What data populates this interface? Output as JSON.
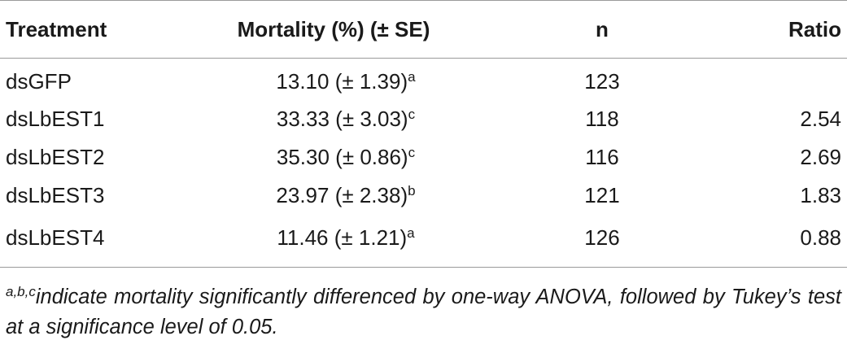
{
  "table": {
    "headers": {
      "treatment": "Treatment",
      "mortality": "Mortality (%) (± SE)",
      "n": "n",
      "ratio": "Ratio"
    },
    "rows": [
      {
        "treatment": "dsGFP",
        "mortality": "13.10 (± 1.39)",
        "sig": "a",
        "n": "123",
        "ratio": ""
      },
      {
        "treatment": "dsLbEST1",
        "mortality": "33.33 (± 3.03)",
        "sig": "c",
        "n": "118",
        "ratio": "2.54"
      },
      {
        "treatment": "dsLbEST2",
        "mortality": "35.30 (± 0.86)",
        "sig": "c",
        "n": "116",
        "ratio": "2.69"
      },
      {
        "treatment": "dsLbEST3",
        "mortality": "23.97 (± 2.38)",
        "sig": "b",
        "n": "121",
        "ratio": "1.83"
      },
      {
        "treatment": "dsLbEST4",
        "mortality": "11.46 (± 1.21)",
        "sig": "a",
        "n": "126",
        "ratio": "0.88"
      }
    ]
  },
  "footnote": {
    "marker": "a,b,c",
    "text": "indicate mortality significantly differenced by one-way ANOVA, followed by Tukey’s test at a significance level of 0.05."
  }
}
